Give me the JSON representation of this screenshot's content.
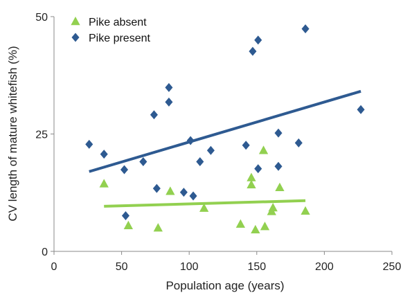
{
  "chart_data": {
    "type": "scatter",
    "title": "",
    "xlabel": "Population age (years)",
    "ylabel": "CV length of mature whitefish (%)",
    "xlim": [
      0,
      250
    ],
    "ylim": [
      0,
      50
    ],
    "xticks": [
      "0",
      "50",
      "100",
      "150",
      "200",
      "250"
    ],
    "yticks": [
      "0",
      "25",
      "50"
    ],
    "grid": false,
    "legend_position": "top-left",
    "series": [
      {
        "name": "Pike absent",
        "marker": "triangle",
        "color": "#92d050",
        "points": [
          [
            37,
            14.4
          ],
          [
            55,
            5.5
          ],
          [
            77,
            5.0
          ],
          [
            86,
            12.8
          ],
          [
            111,
            9.2
          ],
          [
            138,
            5.8
          ],
          [
            146,
            15.7
          ],
          [
            146,
            14.2
          ],
          [
            149,
            4.6
          ],
          [
            155,
            21.5
          ],
          [
            156,
            5.3
          ],
          [
            161,
            8.5
          ],
          [
            162,
            9.3
          ],
          [
            167,
            13.6
          ],
          [
            186,
            8.6
          ]
        ],
        "trend": {
          "x": [
            37,
            186
          ],
          "y": [
            9.6,
            10.8
          ]
        }
      },
      {
        "name": "Pike present",
        "marker": "diamond",
        "color": "#2e5a91",
        "points": [
          [
            26,
            22.8
          ],
          [
            37,
            20.7
          ],
          [
            52,
            17.4
          ],
          [
            53,
            7.6
          ],
          [
            66,
            19.1
          ],
          [
            74,
            29.1
          ],
          [
            76,
            13.4
          ],
          [
            85,
            31.8
          ],
          [
            85,
            34.9
          ],
          [
            96,
            12.6
          ],
          [
            101,
            23.6
          ],
          [
            103,
            11.8
          ],
          [
            108,
            19.1
          ],
          [
            116,
            21.5
          ],
          [
            142,
            22.6
          ],
          [
            147,
            42.6
          ],
          [
            151,
            17.6
          ],
          [
            151,
            45.0
          ],
          [
            166,
            25.2
          ],
          [
            166,
            18.1
          ],
          [
            181,
            23.1
          ],
          [
            186,
            47.4
          ],
          [
            227,
            30.2
          ]
        ],
        "trend": {
          "x": [
            26,
            227
          ],
          "y": [
            17.0,
            34.1
          ]
        }
      }
    ]
  }
}
